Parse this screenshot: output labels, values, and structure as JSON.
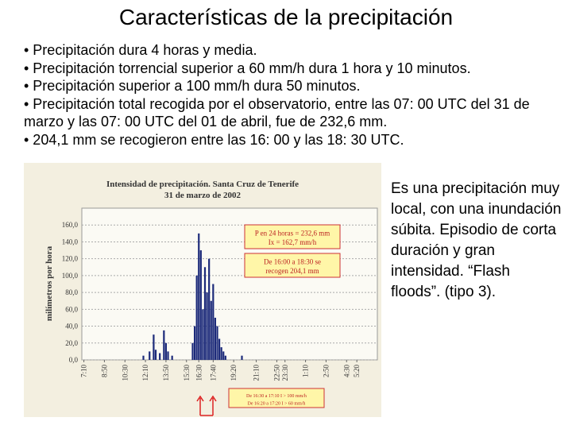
{
  "title": "Características de la precipitación",
  "bullets": [
    "• Precipitación dura 4 horas y media.",
    "• Precipitación torrencial superior a 60 mm/h dura 1 hora y 10 minutos.",
    "• Precipitación superior a 100 mm/h dura 50 minutos.",
    "• Precipitación total recogida por el observatorio, entre las 07: 00 UTC del 31 de marzo y las 07: 00 UTC del 01 de abril, fue de 232,6 mm.",
    "• 204,1 mm se recogieron entre las 16: 00 y las 18: 30 UTC."
  ],
  "side_text": "Es una precipitación muy local, con una inundación súbita. Episodio de corta duración y gran intensidad. “Flash floods”. (tipo 3).",
  "chart_data": {
    "type": "bar",
    "title": "Intensidad de precipitación. Santa Cruz de Tenerife",
    "subtitle": "31 de marzo de 2002",
    "y_label": "milímetros por hora",
    "x": [
      300,
      330,
      350,
      360,
      380,
      400,
      410,
      420,
      440,
      540,
      550,
      560,
      570,
      580,
      590,
      600,
      610,
      620,
      630,
      640,
      650,
      660,
      670,
      680,
      690,
      700,
      780
    ],
    "values": [
      5,
      10,
      30,
      12,
      8,
      35,
      20,
      10,
      5,
      20,
      40,
      100,
      150,
      130,
      60,
      110,
      80,
      120,
      70,
      90,
      50,
      40,
      25,
      15,
      10,
      5,
      5
    ],
    "color": "#1c2a7a",
    "xlim": [
      0,
      1440
    ],
    "xticks": [
      {
        "value": 10,
        "label": "7:10"
      },
      {
        "value": 110,
        "label": "8:50"
      },
      {
        "value": 210,
        "label": "10:30"
      },
      {
        "value": 310,
        "label": "12:10"
      },
      {
        "value": 410,
        "label": "13:50"
      },
      {
        "value": 510,
        "label": "15:30"
      },
      {
        "value": 570,
        "label": "16:30"
      },
      {
        "value": 640,
        "label": "17:40"
      },
      {
        "value": 740,
        "label": "19:20"
      },
      {
        "value": 850,
        "label": "21:10"
      },
      {
        "value": 950,
        "label": "22:50"
      },
      {
        "value": 990,
        "label": "23:30"
      },
      {
        "value": 1090,
        "label": "1:10"
      },
      {
        "value": 1190,
        "label": "2:50"
      },
      {
        "value": 1290,
        "label": "4:30"
      },
      {
        "value": 1340,
        "label": "5:20"
      }
    ],
    "ylim": [
      0,
      180
    ],
    "yticks": [
      {
        "value": 0,
        "label": "0,0"
      },
      {
        "value": 20,
        "label": "20,0"
      },
      {
        "value": 40,
        "label": "40,0"
      },
      {
        "value": 60,
        "label": "60,0"
      },
      {
        "value": 80,
        "label": "80,0"
      },
      {
        "value": 100,
        "label": "100,0"
      },
      {
        "value": 120,
        "label": "120,0"
      },
      {
        "value": 140,
        "label": "140,0"
      },
      {
        "value": 160,
        "label": "160,0"
      }
    ],
    "grid": true,
    "annotations": [
      [
        "P en 24 horas = 232,6 mm",
        "Ix = 162,7 mm/h"
      ],
      [
        "De 16:00 a 18:30 se",
        "recogen 204,1 mm"
      ],
      [
        "De 16:30 a 17:10 I > 100 mm/h",
        "De 16:20 a 17:20 I > 60 mm/h"
      ]
    ]
  }
}
